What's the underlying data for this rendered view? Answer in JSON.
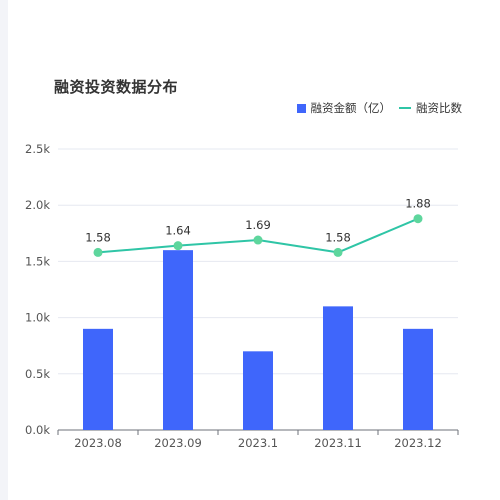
{
  "chart_data": {
    "type": "bar",
    "title": "融资投资数据分布",
    "categories": [
      "2023.08",
      "2023.09",
      "2023.1",
      "2023.11",
      "2023.12"
    ],
    "series": [
      {
        "name": "融资金额（亿）",
        "type": "bar",
        "values": [
          900,
          1600,
          700,
          1100,
          900
        ],
        "color": "#3f66fb"
      },
      {
        "name": "融资比数",
        "type": "line",
        "values": [
          1.58,
          1.64,
          1.69,
          1.58,
          1.88
        ],
        "color": "#2fc5a6",
        "point_color": "#5ed69d"
      }
    ],
    "y_ticks": [
      "0.0k",
      "0.5k",
      "1.0k",
      "1.5k",
      "2.0k",
      "2.5k"
    ],
    "ylim": [
      0,
      2500
    ],
    "line_value_scale": 1000,
    "grid": true,
    "legend_position": "top-right"
  }
}
